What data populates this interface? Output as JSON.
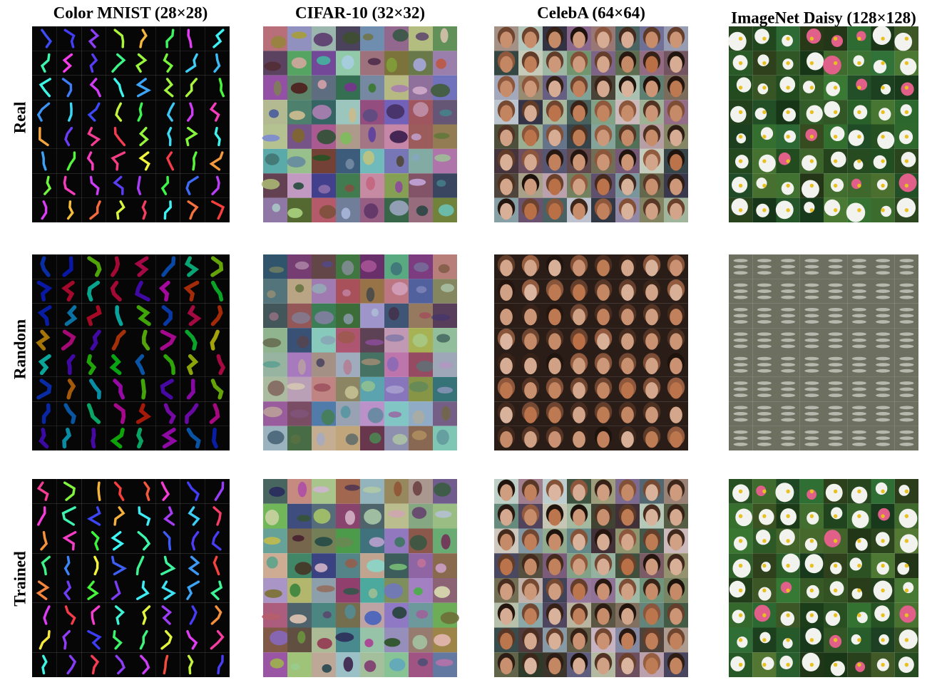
{
  "columns": [
    {
      "title": "Color MNIST (28×28)"
    },
    {
      "title": "CIFAR-10 (32×32)"
    },
    {
      "title": "CelebA (64×64)"
    },
    {
      "title": "ImageNet Daisy (128×128)"
    }
  ],
  "rows": [
    {
      "label": "Real"
    },
    {
      "label": "Random"
    },
    {
      "label": "Trained"
    }
  ]
}
